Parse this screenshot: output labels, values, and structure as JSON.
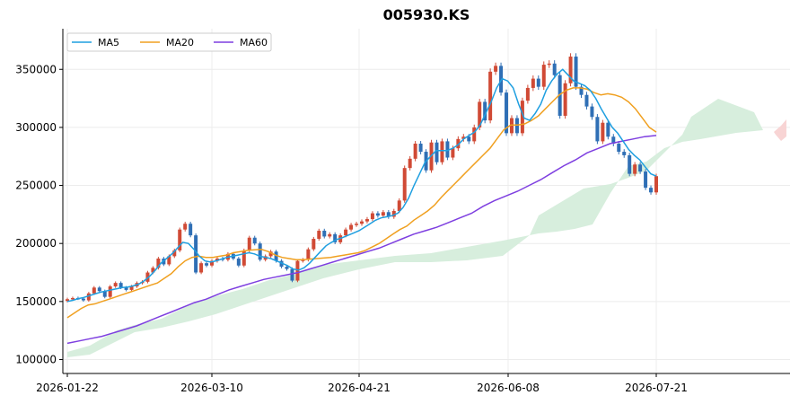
{
  "chart_data": {
    "type": "candlestick",
    "title": "005930.KS",
    "xlabel": "",
    "ylabel": "",
    "grid": true,
    "legend_position": "top-left",
    "ylim": [
      88000,
      385000
    ],
    "x_tick_labels": [
      "2026-01-22",
      "2026-03-10",
      "2026-04-21",
      "2026-06-08",
      "2026-07-21"
    ],
    "y_ticks": [
      100000,
      150000,
      200000,
      250000,
      300000,
      350000
    ],
    "y_tick_labels": [
      "100000",
      "150000",
      "200000",
      "250000",
      "300000",
      "350000"
    ],
    "colors": {
      "up": "#d04a35",
      "down": "#2f6fb5",
      "ma5": "#1f9fe0",
      "ma20": "#f0a020",
      "ma60": "#7e3fe0",
      "cloud_bull": "#d7eedd",
      "cloud_bear": "#f8d4d4",
      "grid": "#ececec"
    },
    "legend": [
      {
        "key": "ma5",
        "label": "MA5"
      },
      {
        "key": "ma20",
        "label": "MA20"
      },
      {
        "key": "ma60",
        "label": "MA60"
      }
    ],
    "candles_closes": [
      152000,
      153000,
      152500,
      151000,
      157000,
      162000,
      159000,
      154000,
      163000,
      166000,
      162000,
      160000,
      163000,
      166000,
      167000,
      175000,
      179000,
      187000,
      182000,
      189000,
      194000,
      212000,
      217000,
      207000,
      175000,
      183000,
      181000,
      185000,
      187000,
      186000,
      191000,
      187000,
      181000,
      194000,
      205000,
      200000,
      186000,
      189000,
      193000,
      185000,
      180000,
      178000,
      168000,
      185000,
      186000,
      195000,
      204000,
      211000,
      206000,
      208000,
      201000,
      207000,
      212000,
      216000,
      217000,
      219000,
      221000,
      226000,
      224000,
      227000,
      223000,
      228000,
      237000,
      265000,
      273000,
      286000,
      279000,
      263000,
      287000,
      270000,
      288000,
      274000,
      282000,
      290000,
      292000,
      288000,
      300000,
      322000,
      306000,
      348000,
      353000,
      330000,
      295000,
      308000,
      295000,
      323000,
      334000,
      342000,
      335000,
      354000,
      355000,
      345000,
      310000,
      338000,
      361000,
      335000,
      328000,
      318000,
      309000,
      288000,
      304000,
      292000,
      286000,
      279000,
      276000,
      260000,
      268000,
      262000,
      248000,
      244000,
      258000
    ],
    "ma5": [
      150000,
      151000,
      152500,
      153500,
      155000,
      156500,
      158000,
      159000,
      160000,
      161000,
      162000,
      162500,
      163500,
      165000,
      168000,
      172000,
      177000,
      183000,
      187000,
      191000,
      196000,
      201000,
      200000,
      195000,
      189000,
      185000,
      184000,
      185000,
      186500,
      188000,
      189000,
      190000,
      191000,
      192000,
      191000,
      189000,
      188000,
      187000,
      185000,
      183000,
      181000,
      178000,
      177000,
      179000,
      183000,
      188000,
      193000,
      198000,
      201000,
      203500,
      205000,
      207000,
      209000,
      211000,
      214000,
      217000,
      220000,
      222000,
      223000,
      224000,
      226000,
      231000,
      239000,
      250000,
      260000,
      270000,
      275000,
      280000,
      280000,
      280000,
      282000,
      285000,
      290000,
      293000,
      296000,
      302000,
      312000,
      322000,
      334000,
      342000,
      340000,
      334000,
      320000,
      308000,
      306000,
      312000,
      320000,
      332000,
      340000,
      346000,
      350000,
      345000,
      340000,
      338000,
      336000,
      332000,
      325000,
      316000,
      308000,
      300000,
      295000,
      288000,
      281000,
      276000,
      272000,
      266000,
      260000,
      258000
    ],
    "ma20": [
      136000,
      140000,
      144000,
      147000,
      148000,
      150000,
      152000,
      154000,
      156000,
      158000,
      160000,
      162000,
      164000,
      166000,
      170000,
      174000,
      180000,
      185000,
      188000,
      189000,
      188000,
      188000,
      189000,
      190000,
      192000,
      193000,
      194000,
      194500,
      195000,
      193000,
      190000,
      188000,
      187000,
      186000,
      186000,
      186500,
      187000,
      187500,
      188000,
      189000,
      190000,
      191000,
      192000,
      194000,
      197000,
      200000,
      204000,
      208000,
      212000,
      215000,
      220000,
      224000,
      228000,
      233000,
      240000,
      246000,
      252000,
      258000,
      264000,
      270000,
      276000,
      282000,
      290000,
      298000,
      302000,
      302000,
      303000,
      306000,
      310000,
      316000,
      322000,
      328000,
      332000,
      334000,
      334000,
      333000,
      330000,
      328000,
      329000,
      328000,
      326000,
      322000,
      316000,
      308000,
      300000,
      296000
    ],
    "ma60": [
      114000,
      116000,
      118000,
      120000,
      123000,
      126000,
      129000,
      133000,
      137000,
      141000,
      145000,
      149000,
      152000,
      156000,
      160000,
      163000,
      166000,
      169000,
      171000,
      173000,
      175000,
      178000,
      181000,
      184000,
      187000,
      190000,
      193000,
      196000,
      200000,
      204000,
      208000,
      211000,
      214000,
      218000,
      222000,
      226000,
      232000,
      237000,
      241000,
      245000,
      250000,
      255000,
      261000,
      267000,
      272000,
      278000,
      282000,
      286000,
      288000,
      290000,
      292000,
      293000
    ]
  }
}
